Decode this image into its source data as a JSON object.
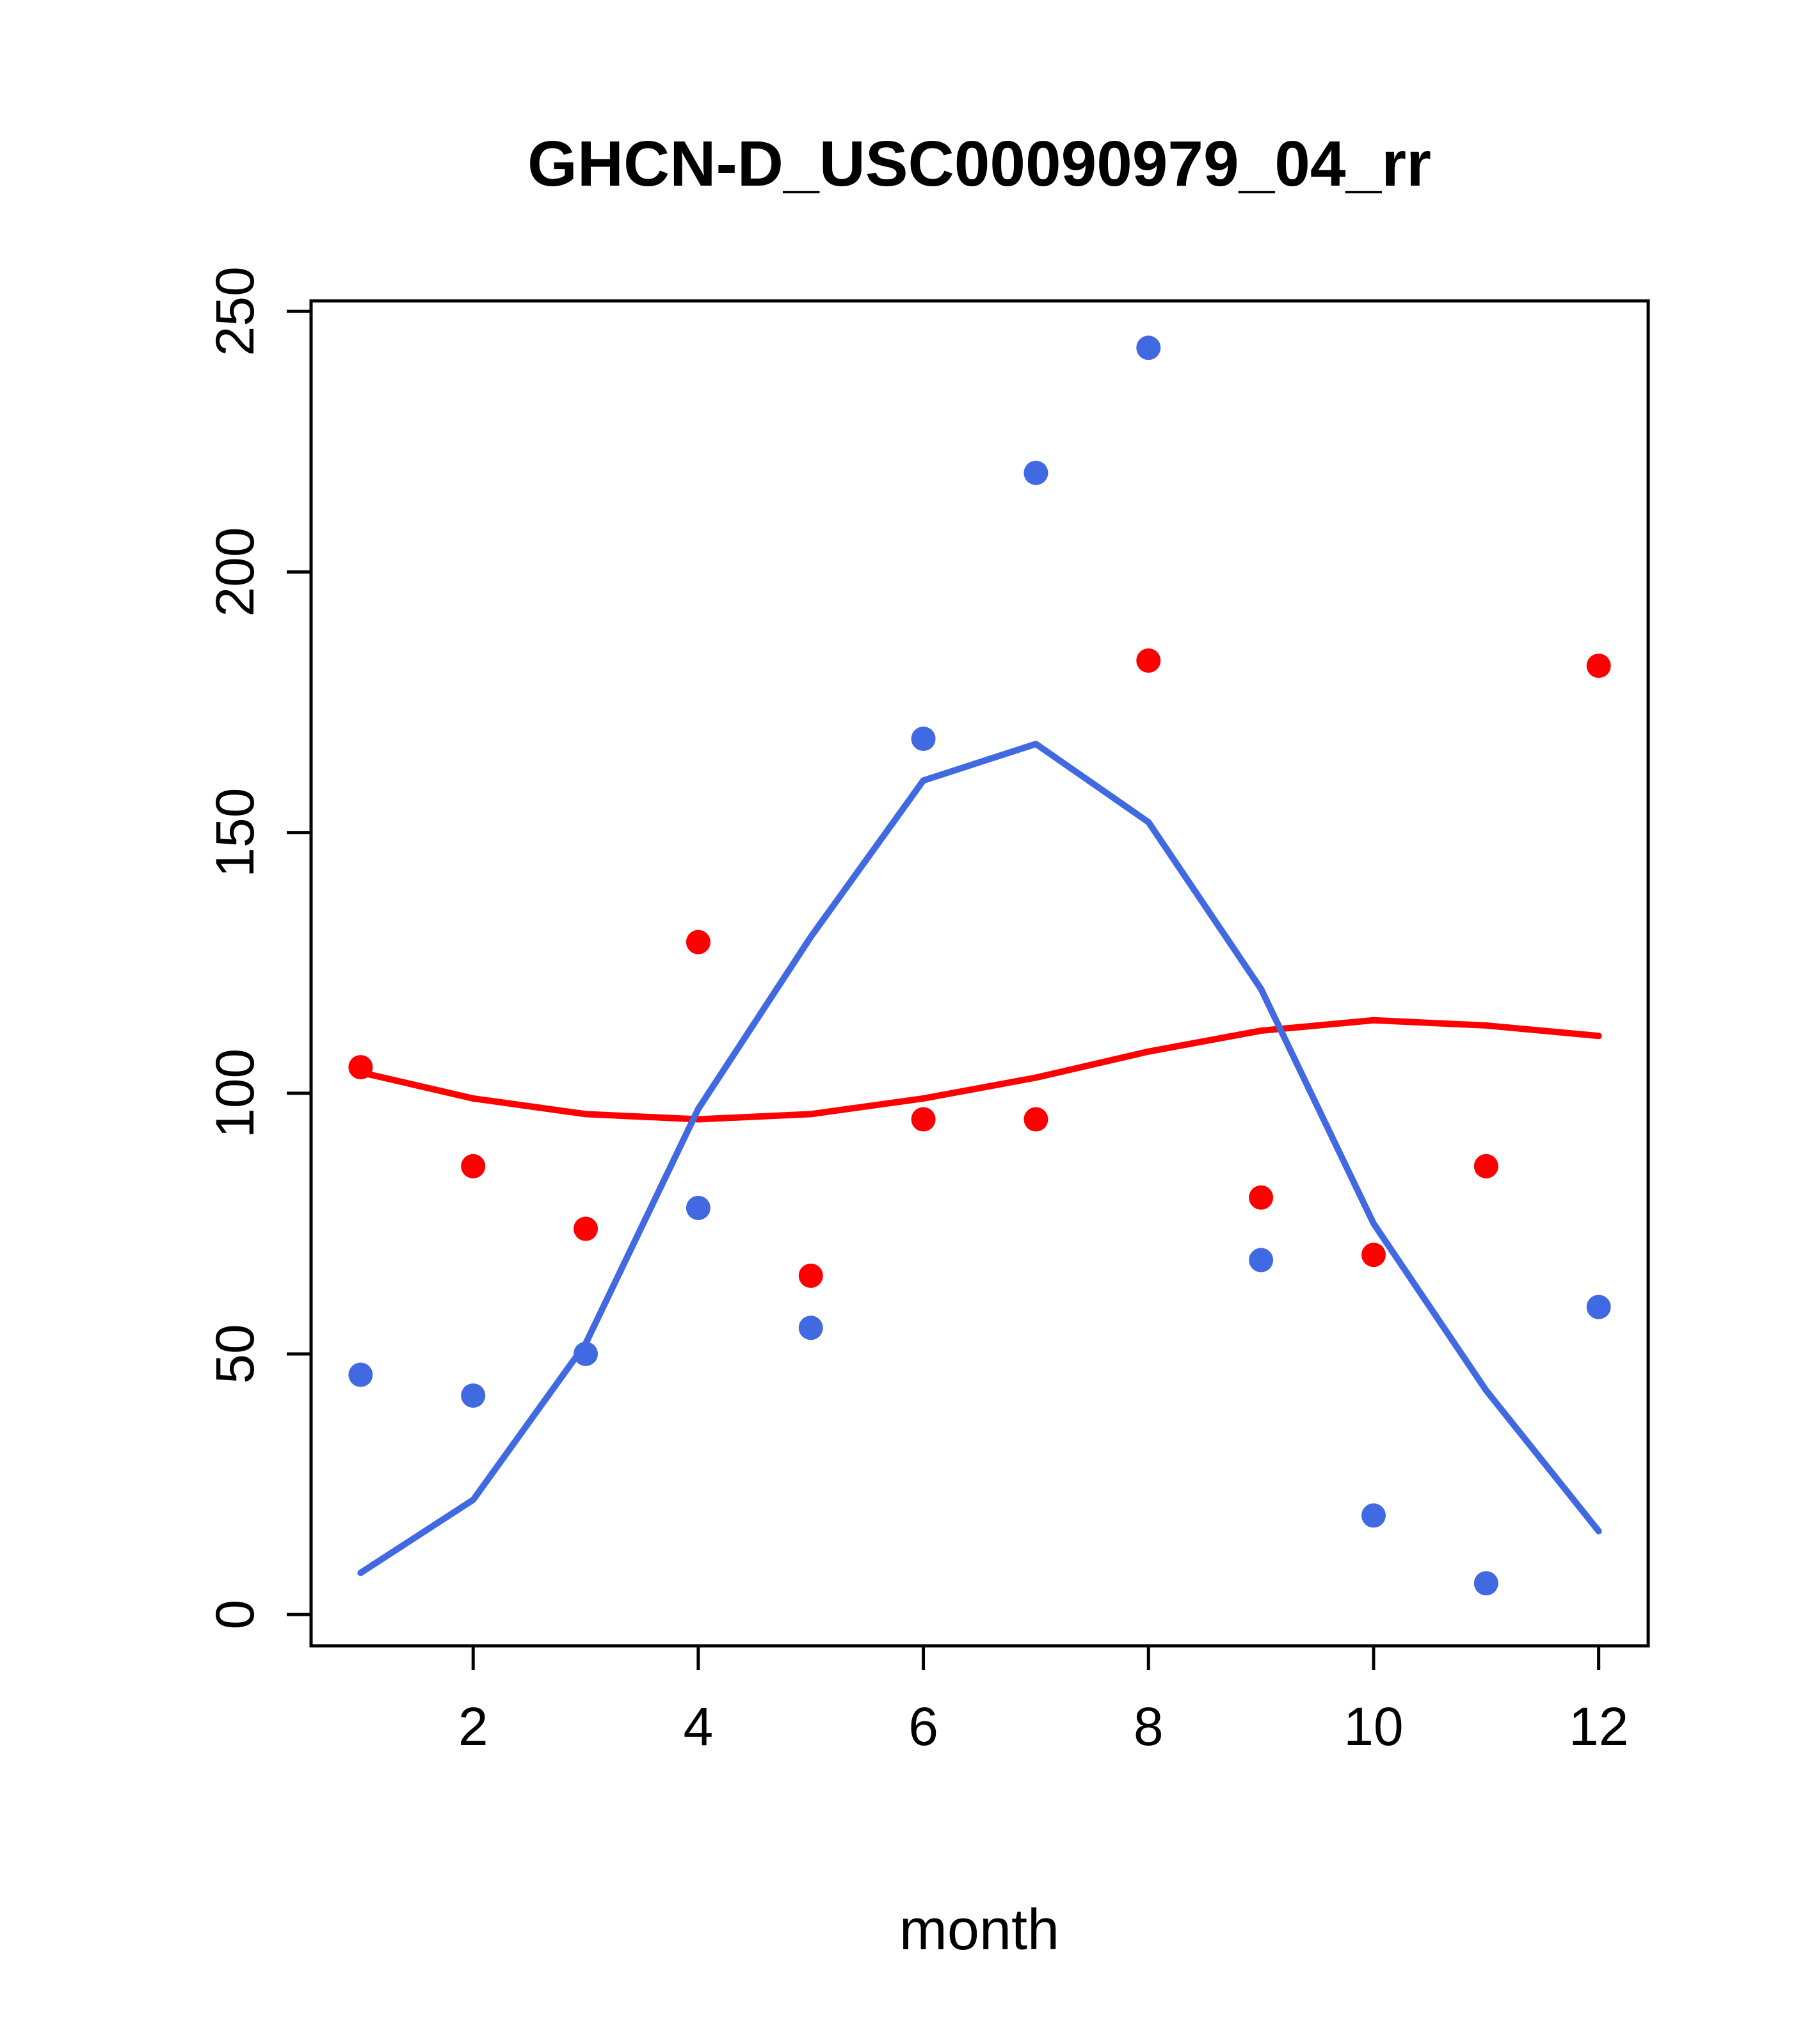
{
  "title": "GHCN-D_USC00090979_04_rr",
  "chart_data": {
    "type": "scatter",
    "title": "GHCN-D_USC00090979_04_rr",
    "xlabel": "month",
    "ylabel": "",
    "x": [
      1,
      2,
      3,
      4,
      5,
      6,
      7,
      8,
      9,
      10,
      11,
      12
    ],
    "xlim": [
      1,
      12
    ],
    "ylim": [
      0,
      250
    ],
    "x_ticks": [
      2,
      4,
      6,
      8,
      10,
      12
    ],
    "y_ticks": [
      0,
      50,
      100,
      150,
      200,
      250
    ],
    "grid": false,
    "legend": "none",
    "colors": {
      "red": "#FF0000",
      "blue": "#4169E1"
    },
    "series": [
      {
        "name": "red-points",
        "kind": "points",
        "color": "#FF0000",
        "values": [
          105,
          86,
          74,
          129,
          65,
          95,
          95,
          183,
          80,
          69,
          86,
          182
        ]
      },
      {
        "name": "blue-points",
        "kind": "points",
        "color": "#4169E1",
        "values": [
          46,
          42,
          50,
          78,
          55,
          168,
          219,
          243,
          68,
          19,
          6,
          59
        ]
      },
      {
        "name": "red-smooth-line",
        "kind": "line",
        "color": "#FF0000",
        "values": [
          104,
          99,
          96,
          95,
          96,
          99,
          103,
          108,
          112,
          114,
          113,
          111
        ]
      },
      {
        "name": "blue-smooth-line",
        "kind": "line",
        "color": "#4169E1",
        "values": [
          8,
          22,
          52,
          97,
          130,
          160,
          167,
          152,
          120,
          75,
          43,
          16
        ]
      }
    ]
  }
}
